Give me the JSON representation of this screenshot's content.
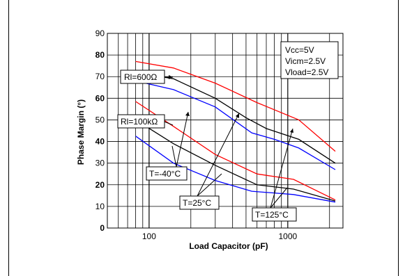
{
  "chart_data": {
    "type": "line",
    "xlabel": "Load Capacitor (pF)",
    "ylabel": "Phase Margin (°)",
    "xscale": "log",
    "xlim": [
      50,
      2500
    ],
    "ylim": [
      0,
      90
    ],
    "x_ticks": [
      {
        "value": 100,
        "label": "100"
      },
      {
        "value": 1000,
        "label": "1000"
      }
    ],
    "y_ticks": [
      {
        "value": 0,
        "label": "0",
        "bold": true
      },
      {
        "value": 10,
        "label": "10",
        "bold": false
      },
      {
        "value": 20,
        "label": "20",
        "bold": true
      },
      {
        "value": 30,
        "label": "30",
        "bold": false
      },
      {
        "value": 40,
        "label": "40",
        "bold": true
      },
      {
        "value": 50,
        "label": "50",
        "bold": false
      },
      {
        "value": 60,
        "label": "60",
        "bold": true
      },
      {
        "value": 70,
        "label": "70",
        "bold": false
      },
      {
        "value": 80,
        "label": "80",
        "bold": true
      },
      {
        "value": 90,
        "label": "90",
        "bold": false
      }
    ],
    "grid": true,
    "series": [
      {
        "color": "#ff0000",
        "points": [
          [
            80,
            77
          ],
          [
            150,
            74
          ],
          [
            300,
            67
          ],
          [
            600,
            58
          ],
          [
            1200,
            50
          ],
          [
            2200,
            35.5
          ]
        ]
      },
      {
        "color": "#000000",
        "points": [
          [
            80,
            72
          ],
          [
            150,
            69
          ],
          [
            300,
            60
          ],
          [
            500,
            51
          ],
          [
            700,
            46
          ],
          [
            1200,
            41
          ],
          [
            2200,
            30
          ]
        ]
      },
      {
        "color": "#0000ff",
        "points": [
          [
            80,
            68
          ],
          [
            150,
            64
          ],
          [
            300,
            56
          ],
          [
            550,
            44
          ],
          [
            800,
            41
          ],
          [
            1200,
            37
          ],
          [
            2200,
            27
          ]
        ]
      },
      {
        "color": "#ff0000",
        "points": [
          [
            80,
            58.5
          ],
          [
            150,
            47
          ],
          [
            300,
            34
          ],
          [
            600,
            25
          ],
          [
            1100,
            22.5
          ],
          [
            2200,
            13
          ]
        ]
      },
      {
        "color": "#000000",
        "points": [
          [
            80,
            50
          ],
          [
            150,
            39
          ],
          [
            300,
            29
          ],
          [
            600,
            20
          ],
          [
            1100,
            18
          ],
          [
            2200,
            12.5
          ]
        ]
      },
      {
        "color": "#0000ff",
        "points": [
          [
            80,
            42.5
          ],
          [
            150,
            30
          ],
          [
            300,
            22
          ],
          [
            550,
            17
          ],
          [
            1100,
            15.5
          ],
          [
            2200,
            12
          ]
        ]
      }
    ],
    "annotations": {
      "conditions": [
        "Vcc=5V",
        "Vicm=2.5V",
        "Vload=2.5V"
      ],
      "rl600": "Rl=600Ω",
      "rl100k": "Rl=100kΩ",
      "t_minus40": "T=-40°C",
      "t_25": "T=25°C",
      "t_125": "T=125°C"
    }
  }
}
